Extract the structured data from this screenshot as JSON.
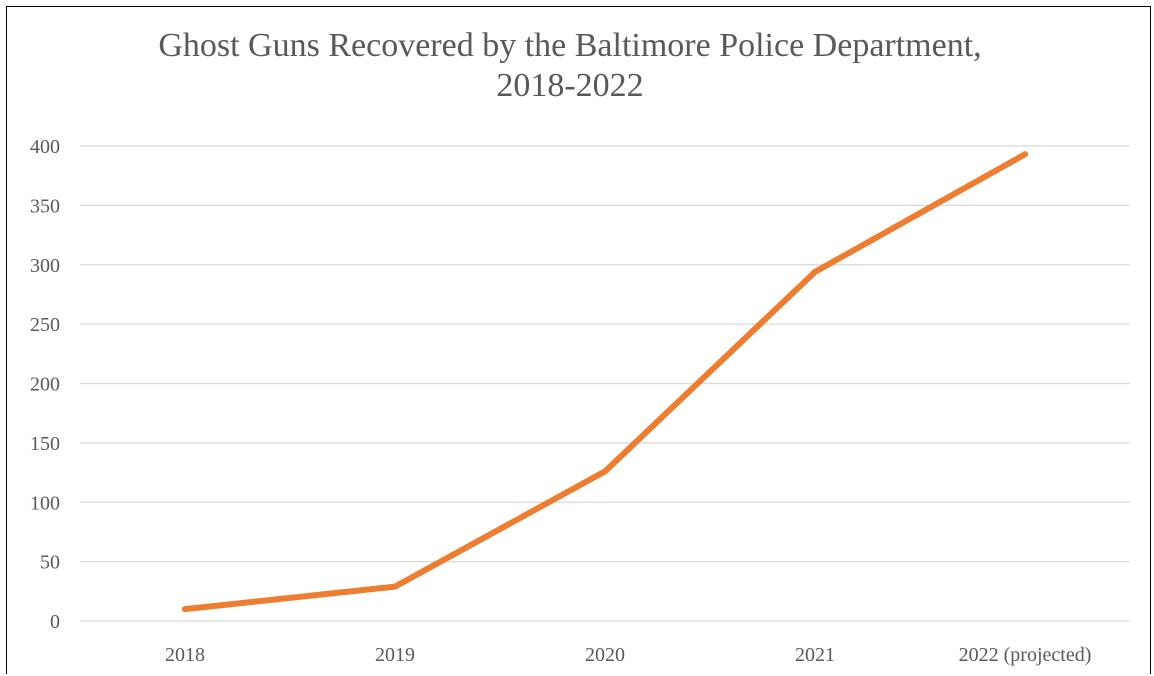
{
  "chart_data": {
    "type": "line",
    "title_lines": [
      "Ghost Guns Recovered by the Baltimore Police Department,",
      "2018-2022"
    ],
    "categories": [
      "2018",
      "2019",
      "2020",
      "2021",
      "2022 (projected)"
    ],
    "series": [
      {
        "values": [
          10,
          29,
          126,
          294,
          393
        ]
      }
    ],
    "ylim": [
      0,
      400
    ],
    "y_ticks": [
      "0",
      "50",
      "100",
      "150",
      "200",
      "250",
      "300",
      "350",
      "400"
    ],
    "y_tick_values": [
      0,
      50,
      100,
      150,
      200,
      250,
      300,
      350,
      400
    ],
    "grid": true,
    "legend": "none",
    "line_color": "#ED7D31",
    "grid_color": "#D9D9D9",
    "text_color": "#595959"
  }
}
